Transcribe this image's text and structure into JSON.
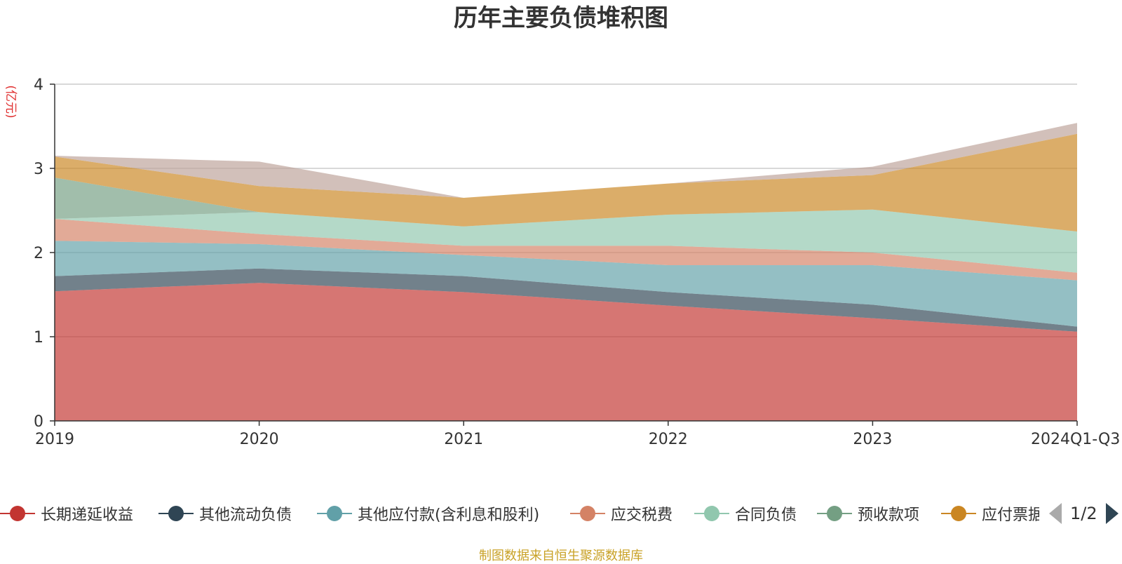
{
  "chart_data": {
    "type": "area",
    "stacked": true,
    "title": "历年主要负债堆积图",
    "ylabel": "(亿元)",
    "xlabel": "",
    "categories": [
      "2019",
      "2020",
      "2021",
      "2022",
      "2023",
      "2024Q1-Q3"
    ],
    "ylim": [
      0,
      4
    ],
    "yticks": [
      0,
      1,
      2,
      3,
      4
    ],
    "grid": true,
    "legend_position": "bottom",
    "legend_page": "1/2",
    "series": [
      {
        "name": "长期递延收益",
        "color": "#c23531",
        "values": [
          1.54,
          1.64,
          1.53,
          1.37,
          1.22,
          1.06
        ]
      },
      {
        "name": "其他流动负债",
        "color": "#2f4554",
        "values": [
          0.18,
          0.17,
          0.19,
          0.16,
          0.16,
          0.06
        ]
      },
      {
        "name": "其他应付款(含利息和股利)",
        "color": "#61a0a8",
        "values": [
          0.42,
          0.29,
          0.25,
          0.32,
          0.47,
          0.55
        ]
      },
      {
        "name": "应交税费",
        "color": "#d48265",
        "values": [
          0.26,
          0.12,
          0.11,
          0.23,
          0.15,
          0.09
        ]
      },
      {
        "name": "合同负债",
        "color": "#91c7ae",
        "values": [
          0.0,
          0.26,
          0.23,
          0.37,
          0.51,
          0.49
        ]
      },
      {
        "name": "预收款项",
        "color": "#749f83",
        "values": [
          0.49,
          0.0,
          0.0,
          0.0,
          0.0,
          0.0
        ]
      },
      {
        "name": "应付票据",
        "color": "#ca8622",
        "values": [
          0.25,
          0.31,
          0.34,
          0.37,
          0.41,
          1.16
        ]
      },
      {
        "name": "",
        "color": "#bda29a",
        "values": [
          0.01,
          0.29,
          0.0,
          0.0,
          0.1,
          0.13
        ]
      }
    ]
  },
  "source_note": "制图数据来自恒生聚源数据库"
}
